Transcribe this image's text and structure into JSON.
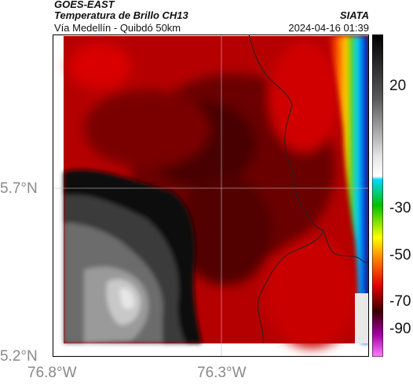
{
  "header": {
    "satellite": "GOES-EAST",
    "product": "Temperatura de Brillo CH13",
    "region": "Vía Medellín - Quibdó 50km",
    "brand": "SIATA",
    "datetime": "2024-04-16 01:39"
  },
  "axes": {
    "lat_labels": [
      "5.7°N",
      "5.2°N"
    ],
    "lon_labels": [
      "76.8°W",
      "76.3°W"
    ]
  },
  "colorbar": {
    "ticks": [
      "20",
      "-30",
      "-50",
      "-70",
      "-90"
    ],
    "colors": {
      "white": "#ffffff",
      "gray": "#8c8c8c",
      "black": "#050505",
      "darkred": "#5a0000",
      "red": "#e00000",
      "orange": "#ff7a00",
      "yellow": "#ffff00",
      "green": "#00c000",
      "cyan": "#00e0ff",
      "blue": "#0030e0",
      "purple": "#a000a0",
      "pink": "#ff80ff"
    }
  }
}
